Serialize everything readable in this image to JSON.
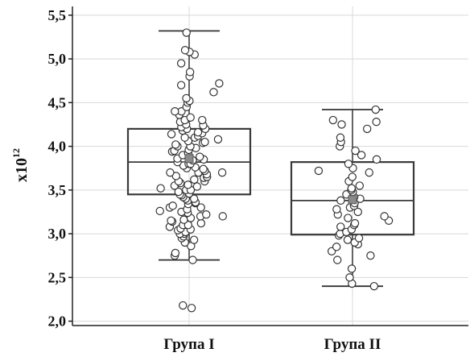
{
  "chart_data": {
    "type": "box",
    "ylabel": "x10",
    "ylabel_exponent": "12",
    "ylim": [
      1.95,
      5.6
    ],
    "yticks": [
      2.0,
      2.5,
      3.0,
      3.5,
      4.0,
      4.5,
      5.0,
      5.5
    ],
    "ytick_labels": [
      "2,0",
      "2,5",
      "3,0",
      "3,5",
      "4,0",
      "4,5",
      "5,0",
      "5,5"
    ],
    "categories": [
      "Група I",
      "Група II"
    ],
    "grid": true,
    "groups": [
      {
        "name": "Група I",
        "whisker_low": 2.7,
        "q1": 3.45,
        "median": 3.82,
        "q3": 4.2,
        "whisker_high": 5.32,
        "mean": 3.86,
        "points": [
          2.15,
          2.18,
          2.7,
          2.75,
          2.78,
          2.86,
          2.9,
          2.93,
          2.95,
          2.97,
          3.0,
          3.0,
          3.02,
          3.04,
          3.05,
          3.06,
          3.08,
          3.1,
          3.1,
          3.12,
          3.14,
          3.15,
          3.16,
          3.18,
          3.2,
          3.2,
          3.22,
          3.24,
          3.25,
          3.26,
          3.28,
          3.3,
          3.3,
          3.32,
          3.34,
          3.35,
          3.36,
          3.38,
          3.4,
          3.4,
          3.42,
          3.44,
          3.45,
          3.46,
          3.48,
          3.5,
          3.5,
          3.52,
          3.54,
          3.55,
          3.56,
          3.58,
          3.6,
          3.6,
          3.62,
          3.64,
          3.65,
          3.66,
          3.68,
          3.7,
          3.7,
          3.7,
          3.72,
          3.74,
          3.75,
          3.76,
          3.78,
          3.8,
          3.8,
          3.82,
          3.84,
          3.85,
          3.86,
          3.88,
          3.9,
          3.9,
          3.92,
          3.94,
          3.95,
          3.96,
          3.98,
          4.0,
          4.0,
          4.02,
          4.04,
          4.05,
          4.06,
          4.08,
          4.1,
          4.1,
          4.12,
          4.14,
          4.15,
          4.16,
          4.18,
          4.2,
          4.2,
          4.22,
          4.24,
          4.25,
          4.28,
          4.3,
          4.3,
          4.33,
          4.36,
          4.4,
          4.4,
          4.45,
          4.5,
          4.52,
          4.55,
          4.62,
          4.7,
          4.72,
          4.8,
          4.85,
          4.95,
          5.05,
          5.08,
          5.1,
          5.3
        ]
      },
      {
        "name": "Група II",
        "whisker_low": 2.4,
        "q1": 2.99,
        "median": 3.38,
        "q3": 3.82,
        "whisker_high": 4.42,
        "mean": 3.39,
        "points": [
          2.4,
          2.43,
          2.5,
          2.6,
          2.7,
          2.75,
          2.8,
          2.85,
          2.88,
          2.9,
          2.93,
          2.95,
          2.98,
          3.0,
          3.02,
          3.05,
          3.08,
          3.1,
          3.12,
          3.15,
          3.18,
          3.2,
          3.22,
          3.25,
          3.28,
          3.3,
          3.32,
          3.35,
          3.38,
          3.4,
          3.42,
          3.45,
          3.48,
          3.5,
          3.52,
          3.55,
          3.6,
          3.65,
          3.7,
          3.72,
          3.75,
          3.8,
          3.85,
          3.9,
          3.95,
          4.0,
          4.05,
          4.1,
          4.2,
          4.25,
          4.28,
          4.3,
          4.42
        ]
      }
    ]
  }
}
